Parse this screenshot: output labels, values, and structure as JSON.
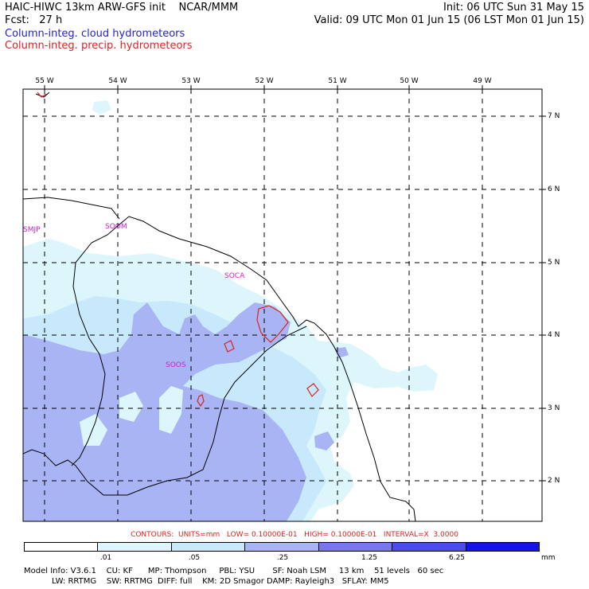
{
  "header": {
    "title": "HAIC-HIWC 13km ARW-GFS init    NCAR/MMM",
    "init": "Init: 06 UTC Sun 31 May 15",
    "fcst": "Fcst:   27 h",
    "valid": "Valid: 09 UTC Mon 01 Jun 15 (06 LST Mon 01 Jun 15)",
    "field1": "Column-integ. cloud hydrometeors",
    "field2": "Column-integ. precip. hydrometeors",
    "field1_color": "#2222cc",
    "field2_color": "#dd2222"
  },
  "map": {
    "longitudes": [
      "55 W",
      "54 W",
      "53 W",
      "52 W",
      "51 W",
      "50 W",
      "49 W"
    ],
    "latitudes": [
      "7 N",
      "6 N",
      "5 N",
      "4 N",
      "3 N",
      "2 N"
    ],
    "stations": [
      "SMJP",
      "SOOM",
      "SOCA",
      "SOOS"
    ]
  },
  "contours": "CONTOURS:  UNITS=mm   LOW= 0.10000E-01   HIGH= 0.10000E-01   INTERVAL=X  3.0000",
  "legend": {
    "colors": [
      "#ffffff",
      "#dcf6fc",
      "#c8e8fc",
      "#a8b4f4",
      "#7878ec",
      "#4c4cea",
      "#1414e6"
    ],
    "ticks": [
      ".01",
      ".05",
      ".25",
      "1.25",
      "6.25"
    ],
    "units": "mm"
  },
  "footer": {
    "line1": "Model Info: V3.6.1    CU: KF      MP: Thompson     PBL: YSU       SF: Noah LSM     13 km    51 levels   60 sec",
    "line2": "           LW: RRTMG    SW: RRTMG  DIFF: full    KM: 2D Smagor DAMP: Rayleigh3   SFLAY: MM5"
  }
}
